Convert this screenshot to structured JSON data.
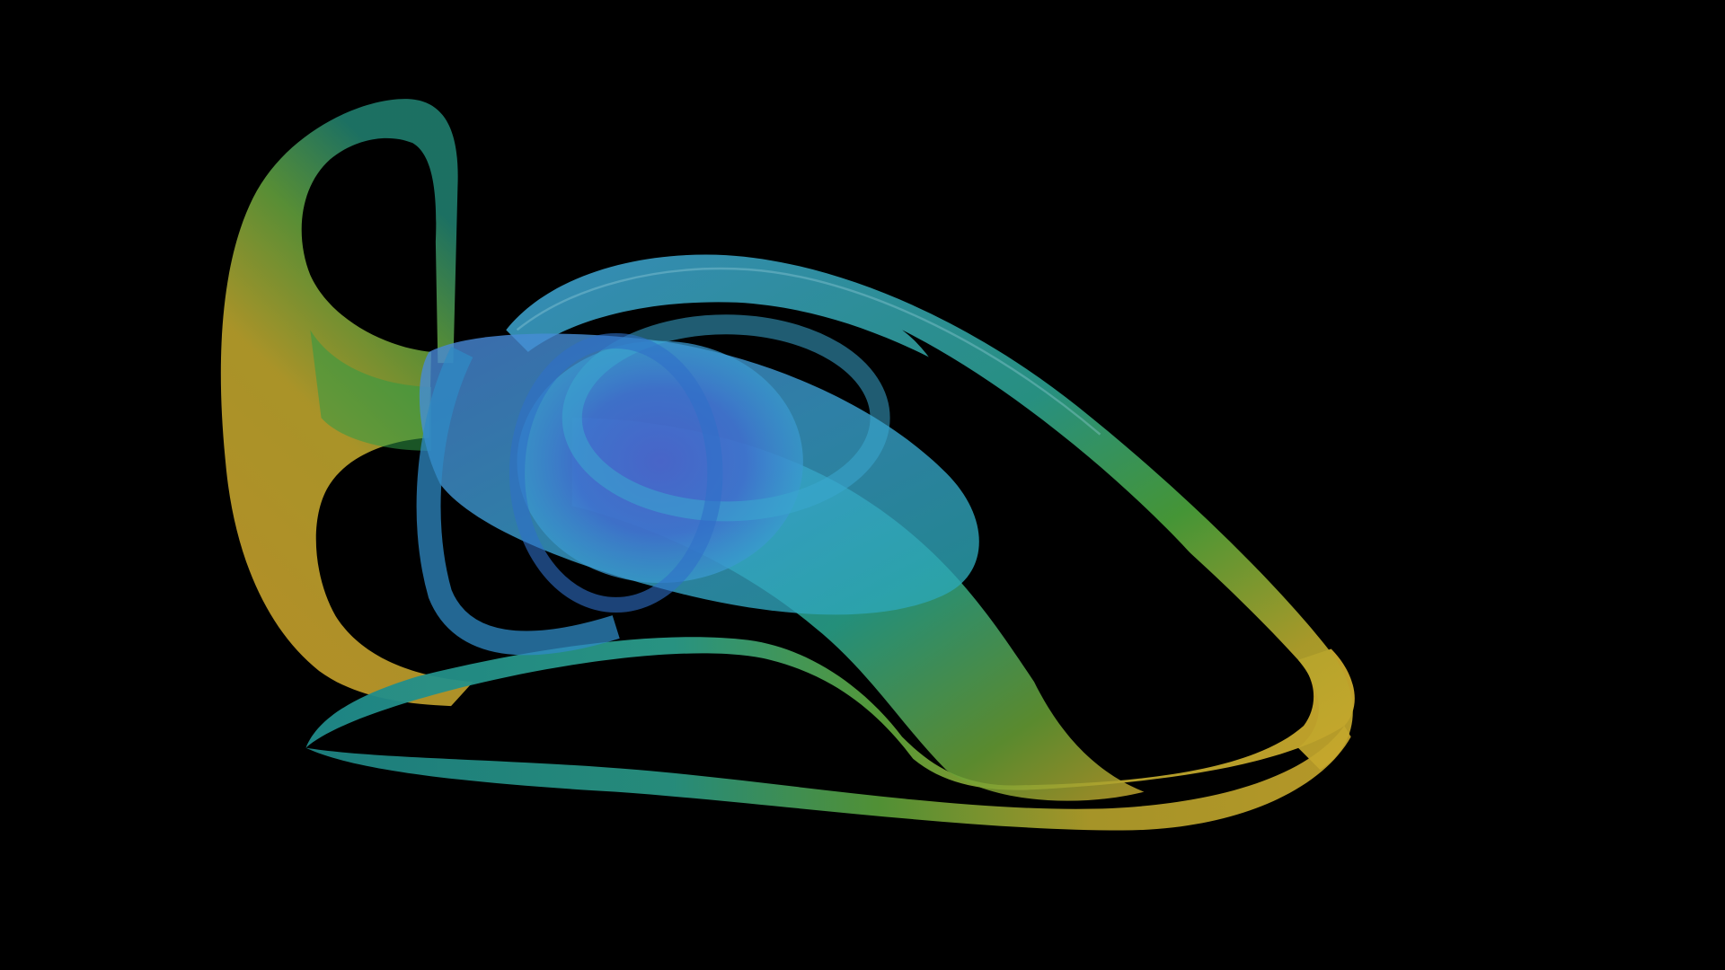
{
  "scene": {
    "background_color": "#000000",
    "subject": "attractor-ribbon",
    "palette": {
      "deep_blue": "#3f5fc4",
      "blue": "#3f8fd0",
      "cyan": "#3aa8c8",
      "teal": "#1f8f86",
      "green": "#3f9f3a",
      "olive": "#9aa52c",
      "yellow": "#c9a82c",
      "gold": "#c49a2a"
    }
  }
}
